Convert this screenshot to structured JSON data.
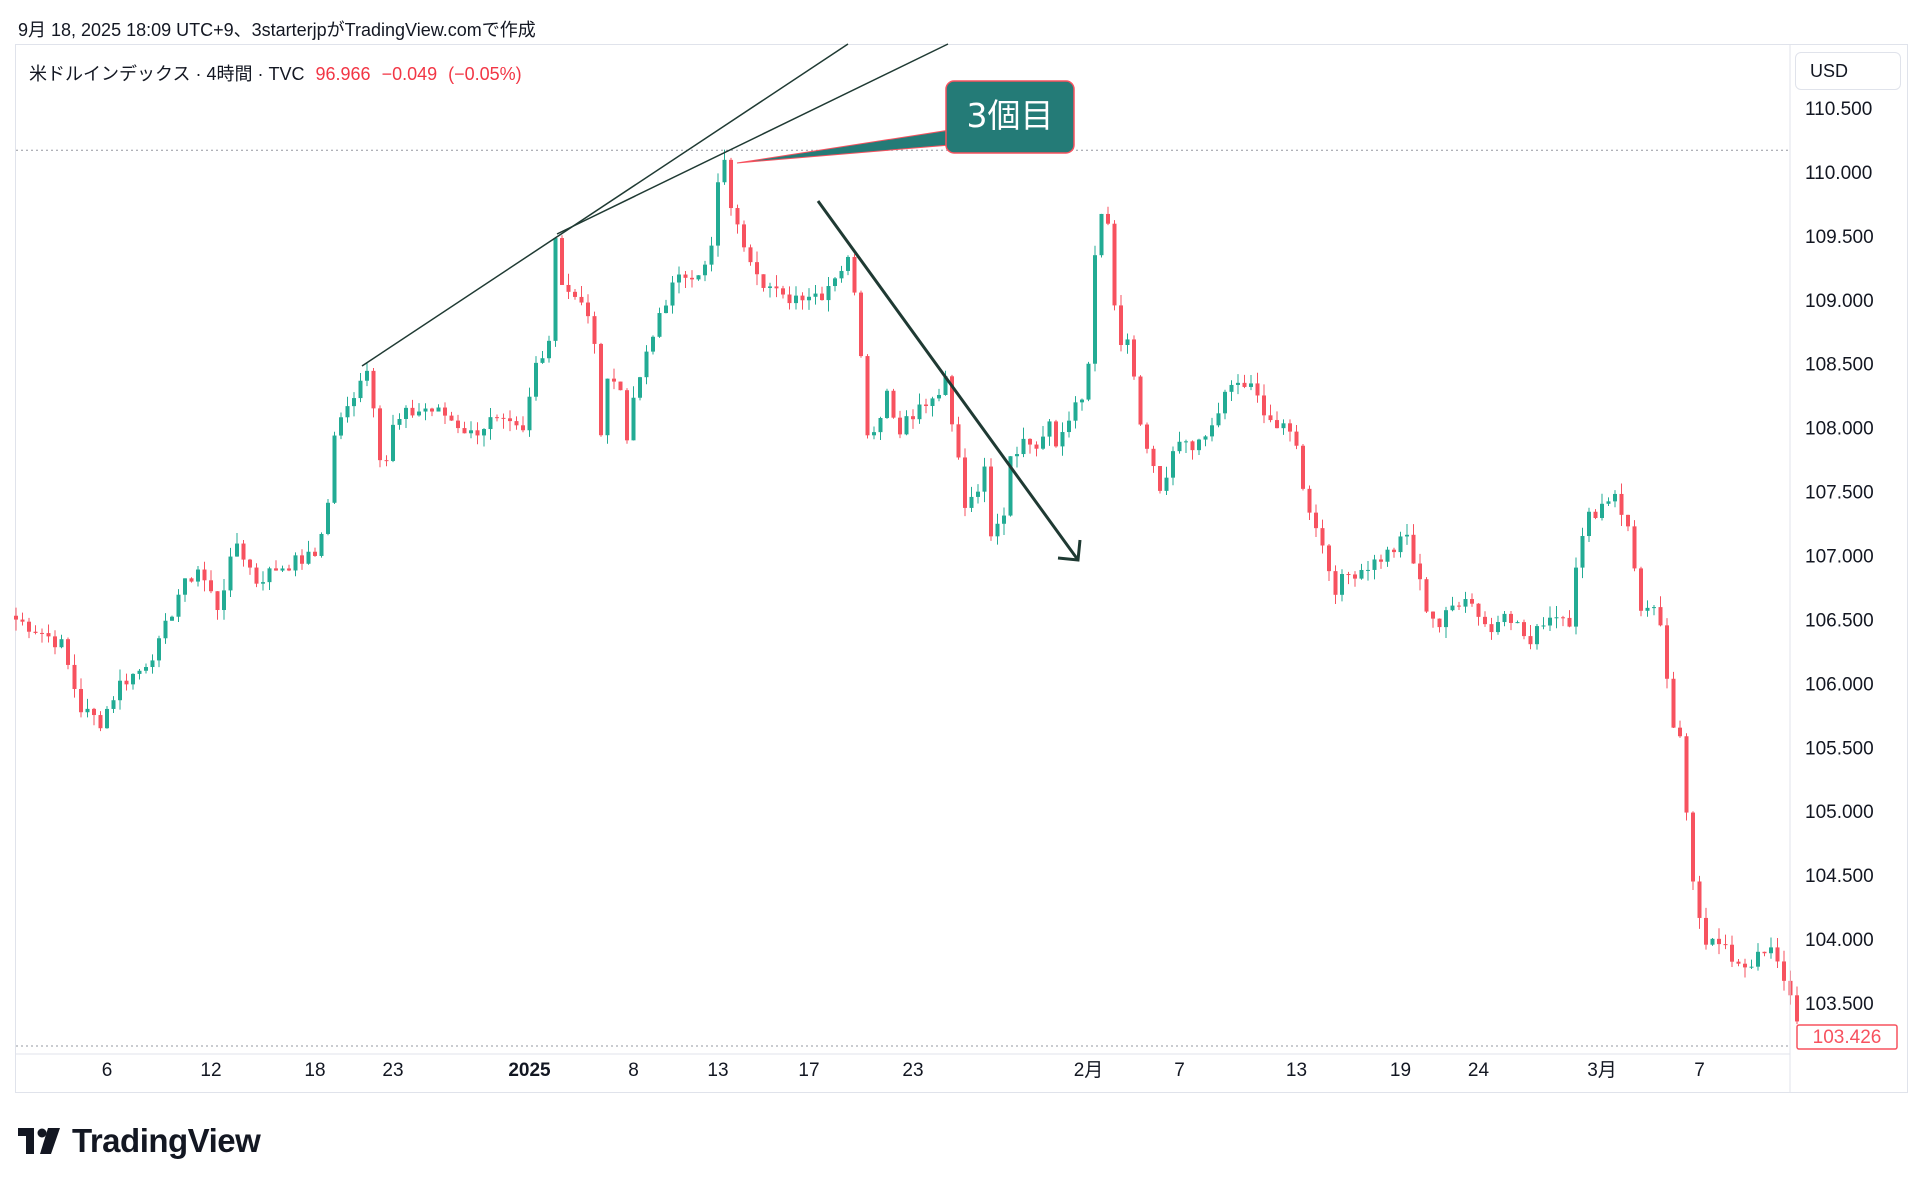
{
  "caption": "9月 18, 2025 18:09 UTC+9、3starterjpがTradingView.comで作成",
  "legend": {
    "symbol": "米ドルインデックス · 4時間 · TVC",
    "last": "96.966",
    "change": "−0.049",
    "change_pct": "(−0.05%)"
  },
  "currency": "USD",
  "brand": "TradingView",
  "colors": {
    "up": "#22ab94",
    "down": "#f7525f",
    "drawing": "#1f3a33",
    "callout": "#247b77",
    "grid": "#9598a1"
  },
  "chart_data": {
    "type": "candlestick",
    "y_ticks": [
      "110.500",
      "110.000",
      "109.500",
      "109.000",
      "108.500",
      "108.000",
      "107.500",
      "107.000",
      "106.500",
      "106.000",
      "105.500",
      "105.000",
      "104.500",
      "104.000",
      "103.500"
    ],
    "ylim": [
      103.08,
      110.95
    ],
    "x_ticks": [
      {
        "label": "6",
        "bar": 14,
        "bold": false
      },
      {
        "label": "12",
        "bar": 30,
        "bold": false
      },
      {
        "label": "18",
        "bar": 46,
        "bold": false
      },
      {
        "label": "23",
        "bar": 58,
        "bold": false
      },
      {
        "label": "2025",
        "bar": 79,
        "bold": true
      },
      {
        "label": "8",
        "bar": 95,
        "bold": false
      },
      {
        "label": "13",
        "bar": 108,
        "bold": false
      },
      {
        "label": "17",
        "bar": 122,
        "bold": false
      },
      {
        "label": "23",
        "bar": 138,
        "bold": false
      },
      {
        "label": "2月",
        "bar": 165,
        "bold": false
      },
      {
        "label": "7",
        "bar": 179,
        "bold": false
      },
      {
        "label": "13",
        "bar": 197,
        "bold": false
      },
      {
        "label": "19",
        "bar": 213,
        "bold": false
      },
      {
        "label": "24",
        "bar": 225,
        "bold": false
      },
      {
        "label": "3月",
        "bar": 244,
        "bold": false
      },
      {
        "label": "7",
        "bar": 259,
        "bold": false
      }
    ],
    "anchors": [
      [
        0,
        106.5
      ],
      [
        4,
        106.4
      ],
      [
        7,
        106.3
      ],
      [
        10,
        105.8
      ],
      [
        13,
        105.7
      ],
      [
        16,
        106.0
      ],
      [
        19,
        106.1
      ],
      [
        22,
        106.3
      ],
      [
        25,
        106.7
      ],
      [
        28,
        106.9
      ],
      [
        31,
        106.6
      ],
      [
        34,
        107.1
      ],
      [
        37,
        106.8
      ],
      [
        40,
        106.9
      ],
      [
        43,
        106.95
      ],
      [
        46,
        107.0
      ],
      [
        48,
        107.4
      ],
      [
        49,
        107.95
      ],
      [
        51,
        108.15
      ],
      [
        53,
        108.4
      ],
      [
        54,
        108.45
      ],
      [
        55,
        108.2
      ],
      [
        56,
        107.8
      ],
      [
        57,
        107.75
      ],
      [
        58,
        108.0
      ],
      [
        60,
        108.1
      ],
      [
        63,
        108.15
      ],
      [
        66,
        108.1
      ],
      [
        70,
        107.95
      ],
      [
        73,
        108.05
      ],
      [
        76,
        108.0
      ],
      [
        78,
        107.95
      ],
      [
        80,
        108.5
      ],
      [
        82,
        108.7
      ],
      [
        83,
        109.5
      ],
      [
        84,
        109.15
      ],
      [
        86,
        109.0
      ],
      [
        88,
        108.9
      ],
      [
        89,
        108.6
      ],
      [
        90,
        108.0
      ],
      [
        91,
        108.4
      ],
      [
        93,
        108.3
      ],
      [
        94,
        107.95
      ],
      [
        96,
        108.4
      ],
      [
        98,
        108.7
      ],
      [
        99,
        108.9
      ],
      [
        101,
        109.1
      ],
      [
        103,
        109.2
      ],
      [
        106,
        109.25
      ],
      [
        107,
        109.4
      ],
      [
        108,
        109.9
      ],
      [
        109,
        110.05
      ],
      [
        110,
        109.75
      ],
      [
        111,
        109.55
      ],
      [
        113,
        109.35
      ],
      [
        115,
        109.15
      ],
      [
        118,
        109.0
      ],
      [
        121,
        109.05
      ],
      [
        124,
        109.05
      ],
      [
        126,
        109.2
      ],
      [
        128,
        109.3
      ],
      [
        129,
        109.1
      ],
      [
        130,
        108.6
      ],
      [
        131,
        108.0
      ],
      [
        132,
        107.95
      ],
      [
        134,
        108.3
      ],
      [
        136,
        107.95
      ],
      [
        137,
        108.1
      ],
      [
        139,
        108.15
      ],
      [
        141,
        108.2
      ],
      [
        143,
        108.35
      ],
      [
        144,
        108.0
      ],
      [
        145,
        107.75
      ],
      [
        146,
        107.4
      ],
      [
        148,
        107.55
      ],
      [
        149,
        107.65
      ],
      [
        150,
        107.2
      ],
      [
        151,
        107.3
      ],
      [
        152,
        107.35
      ],
      [
        153,
        107.8
      ],
      [
        155,
        107.9
      ],
      [
        157,
        107.85
      ],
      [
        159,
        108.0
      ],
      [
        160,
        107.85
      ],
      [
        162,
        108.1
      ],
      [
        164,
        108.2
      ],
      [
        165,
        108.5
      ],
      [
        166,
        109.3
      ],
      [
        167,
        109.65
      ],
      [
        168,
        109.6
      ],
      [
        169,
        108.9
      ],
      [
        170,
        108.6
      ],
      [
        171,
        108.7
      ],
      [
        172,
        108.4
      ],
      [
        173,
        108.0
      ],
      [
        174,
        107.8
      ],
      [
        175,
        107.65
      ],
      [
        176,
        107.5
      ],
      [
        177,
        107.55
      ],
      [
        178,
        107.8
      ],
      [
        180,
        107.9
      ],
      [
        182,
        107.85
      ],
      [
        184,
        108.0
      ],
      [
        186,
        108.25
      ],
      [
        188,
        108.35
      ],
      [
        190,
        108.3
      ],
      [
        192,
        108.15
      ],
      [
        194,
        108.0
      ],
      [
        196,
        107.95
      ],
      [
        197,
        107.9
      ],
      [
        198,
        107.5
      ],
      [
        200,
        107.25
      ],
      [
        202,
        106.9
      ],
      [
        203,
        106.75
      ],
      [
        205,
        106.85
      ],
      [
        207,
        106.9
      ],
      [
        209,
        106.95
      ],
      [
        212,
        107.05
      ],
      [
        214,
        107.15
      ],
      [
        215,
        106.95
      ],
      [
        217,
        106.6
      ],
      [
        219,
        106.45
      ],
      [
        221,
        106.6
      ],
      [
        223,
        106.7
      ],
      [
        225,
        106.55
      ],
      [
        227,
        106.4
      ],
      [
        229,
        106.6
      ],
      [
        231,
        106.45
      ],
      [
        233,
        106.3
      ],
      [
        235,
        106.5
      ],
      [
        237,
        106.55
      ],
      [
        239,
        106.5
      ],
      [
        240,
        106.95
      ],
      [
        242,
        107.3
      ],
      [
        244,
        107.4
      ],
      [
        245,
        107.45
      ],
      [
        246,
        107.5
      ],
      [
        247,
        107.35
      ],
      [
        248,
        107.2
      ],
      [
        249,
        106.9
      ],
      [
        250,
        106.6
      ],
      [
        252,
        106.55
      ],
      [
        253,
        106.4
      ],
      [
        254,
        106.05
      ],
      [
        255,
        105.6
      ],
      [
        256,
        105.55
      ],
      [
        257,
        105.0
      ],
      [
        258,
        104.5
      ],
      [
        259,
        104.2
      ],
      [
        260,
        104.0
      ],
      [
        262,
        103.95
      ],
      [
        264,
        103.85
      ],
      [
        266,
        103.8
      ],
      [
        268,
        103.85
      ],
      [
        270,
        103.9
      ],
      [
        272,
        103.7
      ],
      [
        274,
        103.4
      ]
    ],
    "last_price_label": "103.426",
    "annotation": {
      "text": "3個目"
    }
  }
}
